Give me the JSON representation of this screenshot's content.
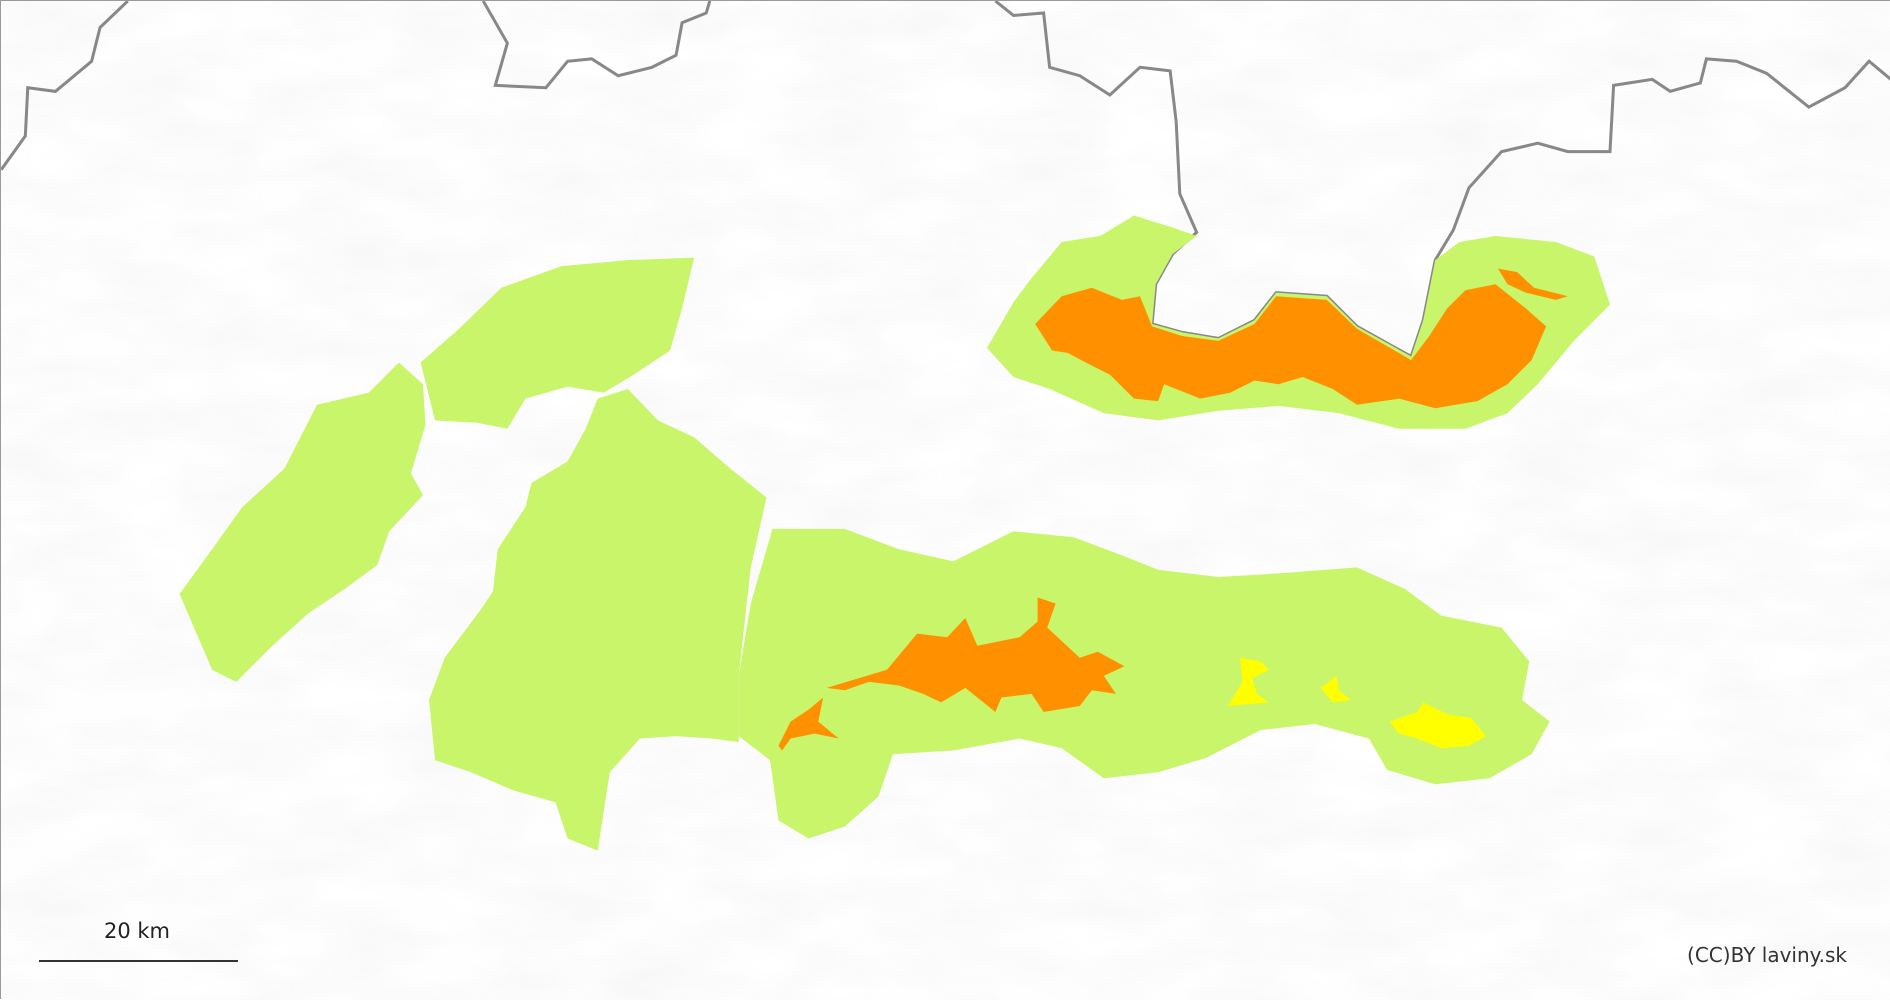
{
  "map": {
    "scale_label": "20 km",
    "attribution": "(CC)BY laviny.sk",
    "colors": {
      "background": "#ffffff",
      "region_low": "#c8f56a",
      "danger_moderate": "#ffff00",
      "danger_considerable": "#ff9000",
      "border": "#888888"
    },
    "regions": [
      {
        "id": "west-1",
        "level": "low"
      },
      {
        "id": "west-2",
        "level": "low"
      },
      {
        "id": "central-west",
        "level": "low"
      },
      {
        "id": "central-south",
        "level": "low"
      },
      {
        "id": "north-tatras",
        "level": "low"
      }
    ],
    "danger_zones": [
      {
        "area": "north-tatras",
        "level": "considerable"
      },
      {
        "area": "central-south",
        "level": "considerable"
      },
      {
        "area": "central-south",
        "level": "moderate"
      }
    ]
  }
}
